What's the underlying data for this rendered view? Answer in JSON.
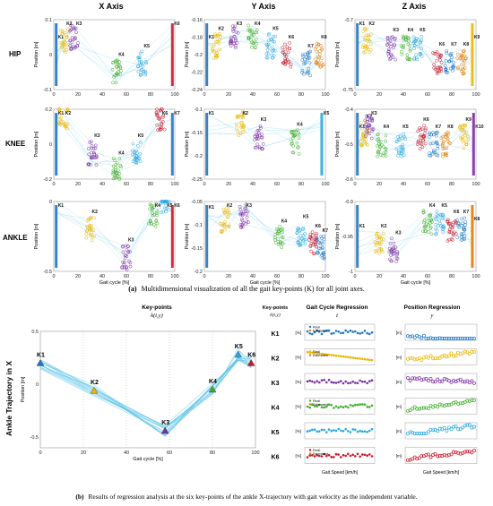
{
  "panel_a": {
    "col_headers": [
      "X Axis",
      "Y Axis",
      "Z Axis"
    ],
    "row_labels": [
      "HIP",
      "KNEE",
      "ANKLE"
    ],
    "caption_prefix": "(a)",
    "caption": "Multidimensional visualization of all the gait key-points (K) for all joint axes."
  },
  "panel_b": {
    "caption_prefix": "(b)",
    "caption": "Results of regression analysis at the six key-points of the ankle X-trajectory with gait velocity as the independent variable.",
    "col_keypoints": "Key-points",
    "col_keypoints_math": "k(t,y)",
    "col_gaitcycle": "Gait Cycle Regression",
    "col_gaitcycle_math": "t",
    "col_position": "Position Regression",
    "col_position_math": "y",
    "side_label": "Ankle Trajectory in X",
    "k_labels": [
      "K1",
      "K2",
      "K3",
      "K4",
      "K5",
      "K6"
    ],
    "unit_pct": "[%]",
    "unit_m": "[m]",
    "legend_real": "Real",
    "legend_est": "Estimated",
    "xlabel_speed": "Gait Speed [km/h]"
  },
  "chart_data": [
    {
      "id": "hip_x",
      "type": "scatter",
      "ylabel": "Position [m]",
      "xlabel": "",
      "ylim": [
        -0.1,
        0.1
      ],
      "yticks": [
        -0.1,
        0,
        0.1
      ],
      "xlim": [
        0,
        100
      ],
      "xticks": [
        0,
        20,
        40,
        60,
        80,
        100
      ],
      "points": [
        {
          "k": "K1",
          "x": 2,
          "y": 0.0
        },
        {
          "k": "K2",
          "x": 9,
          "y": 0.04
        },
        {
          "k": "K3",
          "x": 17,
          "y": 0.05
        },
        {
          "k": "K4",
          "x": 52,
          "y": -0.05
        },
        {
          "k": "K5",
          "x": 73,
          "y": -0.025
        },
        {
          "k": "K6",
          "x": 98,
          "y": 0.05
        }
      ]
    },
    {
      "id": "hip_y",
      "type": "scatter",
      "ylabel": "Position [m]",
      "xlabel": "",
      "ylim": [
        -0.24,
        -0.16
      ],
      "yticks": [
        -0.24,
        -0.22,
        -0.2,
        -0.18,
        -0.16
      ],
      "xlim": [
        0,
        100
      ],
      "xticks": [
        0,
        20,
        40,
        60,
        80,
        100
      ],
      "points": [
        {
          "k": "K1",
          "x": 2,
          "y": -0.2
        },
        {
          "k": "K2",
          "x": 10,
          "y": -0.19
        },
        {
          "k": "K3",
          "x": 25,
          "y": -0.18
        },
        {
          "k": "K4",
          "x": 40,
          "y": -0.18
        },
        {
          "k": "K5",
          "x": 55,
          "y": -0.19
        },
        {
          "k": "K6",
          "x": 68,
          "y": -0.2
        },
        {
          "k": "K7",
          "x": 84,
          "y": -0.21
        },
        {
          "k": "K8",
          "x": 95,
          "y": -0.2
        }
      ]
    },
    {
      "id": "hip_z",
      "type": "scatter",
      "ylabel": "Position [m]",
      "xlabel": "",
      "ylim": [
        -0.75,
        -0.7
      ],
      "yticks": [
        -0.75,
        -0.7
      ],
      "xlim": [
        0,
        100
      ],
      "xticks": [
        0,
        20,
        40,
        60,
        80,
        100
      ],
      "points": [
        {
          "k": "K1",
          "x": 2,
          "y": -0.715
        },
        {
          "k": "K2",
          "x": 10,
          "y": -0.715
        },
        {
          "k": "K3",
          "x": 30,
          "y": -0.72
        },
        {
          "k": "K4",
          "x": 42,
          "y": -0.72
        },
        {
          "k": "K5",
          "x": 52,
          "y": -0.72
        },
        {
          "k": "K6",
          "x": 68,
          "y": -0.73
        },
        {
          "k": "K7",
          "x": 78,
          "y": -0.73
        },
        {
          "k": "K8",
          "x": 88,
          "y": -0.73
        },
        {
          "k": "K9",
          "x": 97,
          "y": -0.725
        }
      ]
    },
    {
      "id": "knee_x",
      "type": "scatter",
      "ylabel": "Position [m]",
      "xlabel": "",
      "ylim": [
        -0.2,
        0.2
      ],
      "yticks": [
        -0.2,
        0,
        0.2
      ],
      "xlim": [
        0,
        100
      ],
      "xticks": [
        0,
        20,
        40,
        60,
        80,
        100
      ],
      "points": [
        {
          "k": "K1",
          "x": 2,
          "y": 0.15
        },
        {
          "k": "K2",
          "x": 8,
          "y": 0.16
        },
        {
          "k": "K3",
          "x": 32,
          "y": -0.05
        },
        {
          "k": "K4",
          "x": 52,
          "y": -0.15
        },
        {
          "k": "K5",
          "x": 68,
          "y": -0.05
        },
        {
          "k": "K6",
          "x": 88,
          "y": 0.15
        },
        {
          "k": "K7",
          "x": 98,
          "y": 0.18
        }
      ]
    },
    {
      "id": "knee_y",
      "type": "scatter",
      "ylabel": "Position [m]",
      "xlabel": "",
      "ylim": [
        -0.25,
        -0.1
      ],
      "yticks": [
        -0.25,
        -0.2,
        -0.15,
        -0.1
      ],
      "xlim": [
        0,
        100
      ],
      "xticks": [
        0,
        20,
        40,
        60,
        80,
        100
      ],
      "points": [
        {
          "k": "K1",
          "x": 2,
          "y": -0.13
        },
        {
          "k": "K2",
          "x": 30,
          "y": -0.13
        },
        {
          "k": "K3",
          "x": 45,
          "y": -0.16
        },
        {
          "k": "K4",
          "x": 75,
          "y": -0.17
        },
        {
          "k": "K5",
          "x": 97,
          "y": -0.13
        }
      ]
    },
    {
      "id": "knee_z",
      "type": "scatter",
      "ylabel": "Position [m]",
      "xlabel": "",
      "ylim": [
        -0.6,
        -0.4
      ],
      "yticks": [
        -0.6,
        -0.5,
        -0.4
      ],
      "xlim": [
        0,
        100
      ],
      "xticks": [
        0,
        20,
        40,
        60,
        80,
        100
      ],
      "points": [
        {
          "k": "K1",
          "x": 2,
          "y": -0.5
        },
        {
          "k": "K2",
          "x": 8,
          "y": -0.47
        },
        {
          "k": "K3",
          "x": 12,
          "y": -0.45
        },
        {
          "k": "K4",
          "x": 22,
          "y": -0.5
        },
        {
          "k": "K5",
          "x": 38,
          "y": -0.5
        },
        {
          "k": "K6",
          "x": 55,
          "y": -0.48
        },
        {
          "k": "K7",
          "x": 65,
          "y": -0.5
        },
        {
          "k": "K8",
          "x": 75,
          "y": -0.5
        },
        {
          "k": "K9",
          "x": 90,
          "y": -0.48
        },
        {
          "k": "K10",
          "x": 98,
          "y": -0.5
        }
      ]
    },
    {
      "id": "ankle_x",
      "type": "scatter",
      "ylabel": "Position [m]",
      "xlabel": "Gait cycle [%]",
      "ylim": [
        -0.5,
        0.0
      ],
      "yticks": [
        -0.5,
        0
      ],
      "xlim": [
        0,
        100
      ],
      "xticks": [
        0,
        20,
        40,
        60,
        80,
        100
      ],
      "points": [
        {
          "k": "K1",
          "x": 2,
          "y": -0.02
        },
        {
          "k": "K2",
          "x": 30,
          "y": -0.2
        },
        {
          "k": "K3",
          "x": 60,
          "y": -0.4
        },
        {
          "k": "K4",
          "x": 82,
          "y": -0.1
        },
        {
          "k": "K5",
          "x": 92,
          "y": 0.0
        },
        {
          "k": "K6",
          "x": 98,
          "y": 0.0
        }
      ]
    },
    {
      "id": "ankle_y",
      "type": "scatter",
      "ylabel": "Position [m]",
      "xlabel": "Gait cycle [%]",
      "ylim": [
        -0.2,
        -0.05
      ],
      "yticks": [
        -0.2,
        -0.15,
        -0.1,
        -0.05
      ],
      "xlim": [
        0,
        100
      ],
      "xticks": [
        0,
        20,
        40,
        60,
        80,
        100
      ],
      "points": [
        {
          "k": "K1",
          "x": 2,
          "y": -0.1
        },
        {
          "k": "K2",
          "x": 17,
          "y": -0.09
        },
        {
          "k": "K3",
          "x": 33,
          "y": -0.08
        },
        {
          "k": "K4",
          "x": 62,
          "y": -0.13
        },
        {
          "k": "K5",
          "x": 80,
          "y": -0.12
        },
        {
          "k": "K6",
          "x": 90,
          "y": -0.14
        },
        {
          "k": "K7",
          "x": 96,
          "y": -0.15
        }
      ]
    },
    {
      "id": "ankle_z",
      "type": "scatter",
      "ylabel": "Position [m]",
      "xlabel": "Gait cycle [%]",
      "ylim": [
        -1,
        -0.9
      ],
      "yticks": [
        -1,
        -0.95,
        -0.9
      ],
      "xlim": [
        0,
        100
      ],
      "xticks": [
        0,
        20,
        40,
        60,
        80,
        100
      ],
      "points": [
        {
          "k": "K1",
          "x": 2,
          "y": -0.96
        },
        {
          "k": "K2",
          "x": 20,
          "y": -0.96
        },
        {
          "k": "K3",
          "x": 32,
          "y": -0.97
        },
        {
          "k": "K4",
          "x": 60,
          "y": -0.93
        },
        {
          "k": "K5",
          "x": 70,
          "y": -0.93
        },
        {
          "k": "K6",
          "x": 80,
          "y": -0.94
        },
        {
          "k": "K7",
          "x": 88,
          "y": -0.94
        },
        {
          "k": "K8",
          "x": 97,
          "y": -0.95
        }
      ]
    },
    {
      "id": "ankle_traj",
      "type": "line",
      "ylabel": "Position [m]",
      "xlabel": "Gait cycle [%]",
      "ylim": [
        -0.6,
        0.5
      ],
      "yticks": [
        0.5,
        0,
        -0.5
      ],
      "xlim": [
        0,
        100
      ],
      "xticks": [
        0,
        20,
        40,
        60,
        80,
        100
      ],
      "points": [
        {
          "k": "K1",
          "x": 0,
          "y": 0.2
        },
        {
          "k": "K2",
          "x": 25,
          "y": -0.06
        },
        {
          "k": "K3",
          "x": 58,
          "y": -0.44
        },
        {
          "k": "K4",
          "x": 80,
          "y": -0.05
        },
        {
          "k": "K5",
          "x": 92,
          "y": 0.28
        },
        {
          "k": "K6",
          "x": 98,
          "y": 0.2
        }
      ]
    }
  ],
  "colors": {
    "K1": "#1f77c4",
    "K2": "#e8b700",
    "K3": "#7a2fa3",
    "K4": "#3fae2a",
    "K5": "#2aa7de",
    "K6": "#c8182b",
    "K7": "#1f77c4",
    "K8": "#e07a00",
    "K9": "#e8b700",
    "K10": "#7a2fa3",
    "curve": "#5fc5e8"
  }
}
